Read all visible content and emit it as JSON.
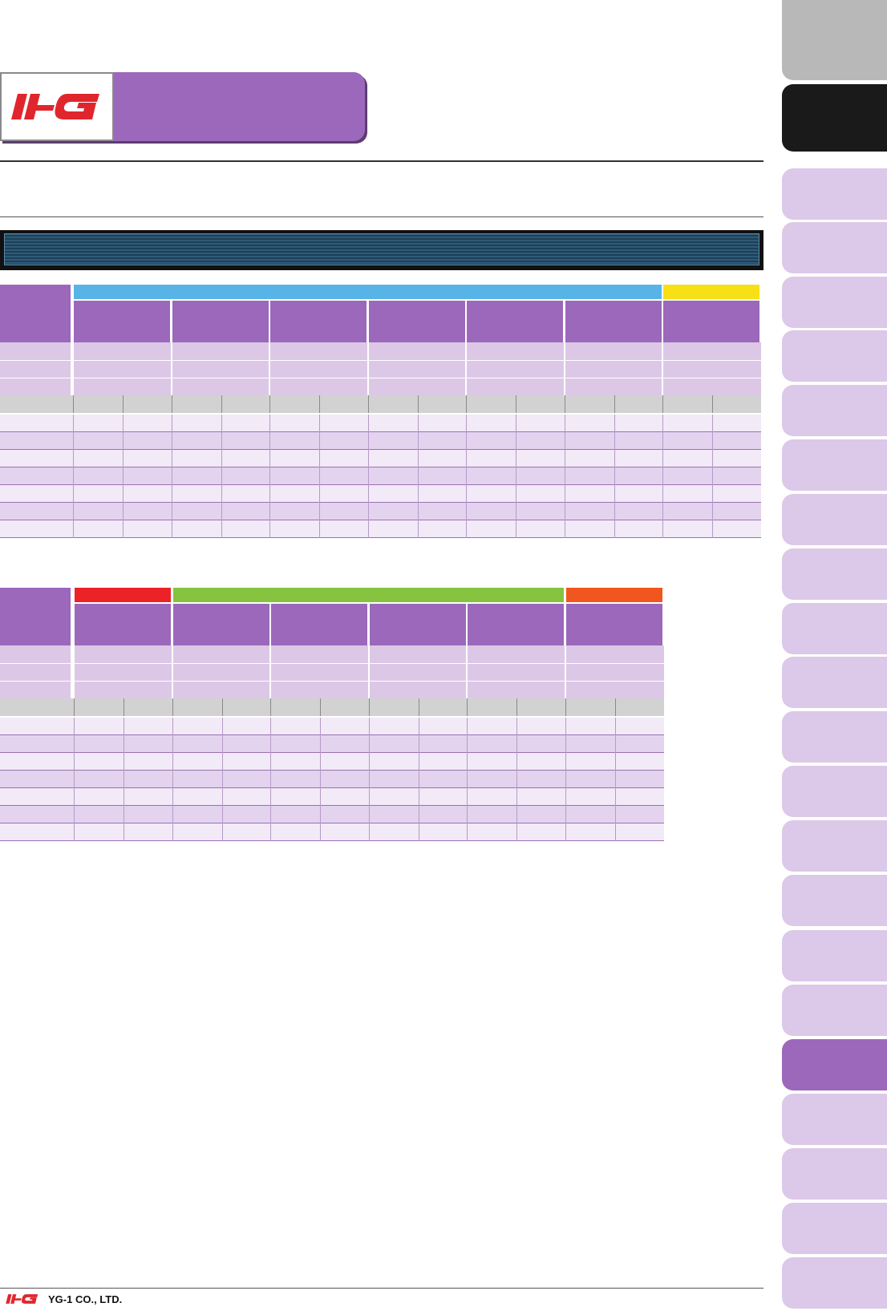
{
  "brand": {
    "logo_text": "YG",
    "logo_color": "#e0262d",
    "accent_color": "#9c68bb"
  },
  "footer": {
    "company": "YG-1 CO., LTD."
  },
  "table1": {
    "group_colors": [
      "#58b4e6",
      "#f7e016"
    ],
    "rows": 7
  },
  "table2": {
    "group_colors": [
      "#ec2227",
      "#86c440",
      "#f1561f"
    ],
    "rows": 7
  },
  "side_tabs": {
    "count": 23,
    "active_index": 17
  }
}
